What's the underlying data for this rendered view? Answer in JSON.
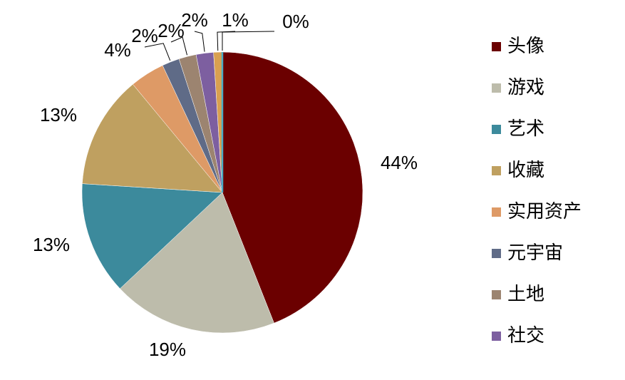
{
  "chart_data": {
    "type": "pie",
    "categories": [
      "头像",
      "游戏",
      "艺术",
      "收藏",
      "实用资产",
      "元宇宙",
      "土地",
      "社交",
      null,
      null
    ],
    "values": [
      44,
      19,
      13,
      13,
      4,
      2,
      2,
      2,
      1,
      0
    ],
    "value_labels": [
      "44%",
      "19%",
      "13%",
      "13%",
      "4%",
      "2%",
      "2%",
      "2%",
      "1%",
      "0%"
    ],
    "colors": [
      "#6b0000",
      "#bdbcab",
      "#3c8a9c",
      "#bfa060",
      "#de9a66",
      "#5f6b87",
      "#9c8470",
      "#7d5fa0",
      "#d9a050",
      "#4bacc6"
    ],
    "legend": "right"
  }
}
